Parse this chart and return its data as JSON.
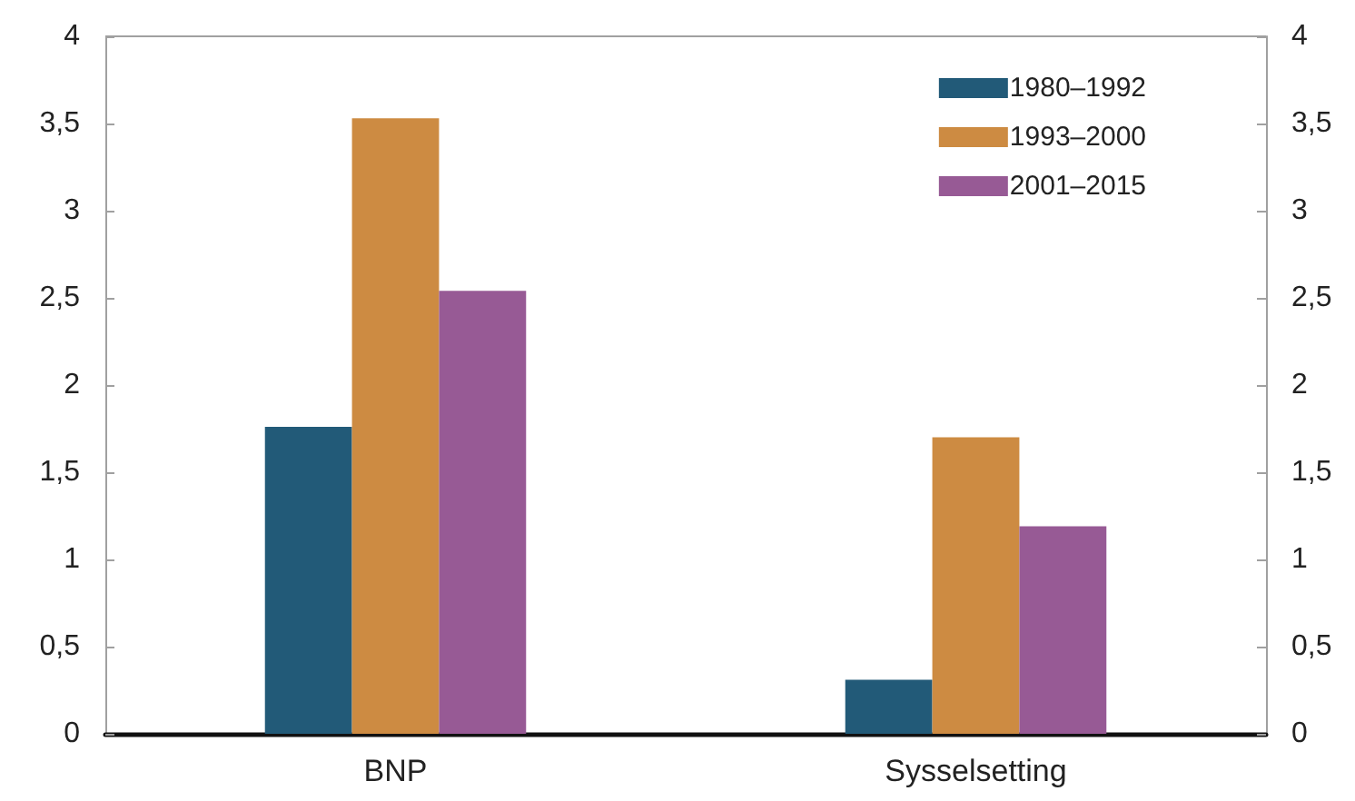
{
  "chart_data": {
    "type": "bar",
    "categories": [
      "BNP",
      "Sysselsetting"
    ],
    "series": [
      {
        "name": "1980–1992",
        "color": "#225a78",
        "values": [
          1.76,
          0.31
        ]
      },
      {
        "name": "1993–2000",
        "color": "#cd8b42",
        "values": [
          3.53,
          1.7
        ]
      },
      {
        "name": "2001–2015",
        "color": "#975a95",
        "values": [
          2.54,
          1.19
        ]
      }
    ],
    "ylim": [
      0,
      4
    ],
    "yticks": [
      0,
      {
        "value": 0.5,
        "label": "0,5"
      },
      1,
      {
        "value": 1.5,
        "label": "1,5"
      },
      2,
      {
        "value": 2.5,
        "label": "2,5"
      },
      3,
      {
        "value": 3.5,
        "label": "3,5"
      },
      4
    ],
    "y2lim": [
      0,
      4
    ],
    "y2ticks": [
      0,
      {
        "value": 0.5,
        "label": "0,5"
      },
      1,
      {
        "value": 1.5,
        "label": "1,5"
      },
      2,
      {
        "value": 2.5,
        "label": "2,5"
      },
      3,
      {
        "value": 3.5,
        "label": "3,5"
      },
      4
    ],
    "legend": "top right",
    "grid": false
  }
}
